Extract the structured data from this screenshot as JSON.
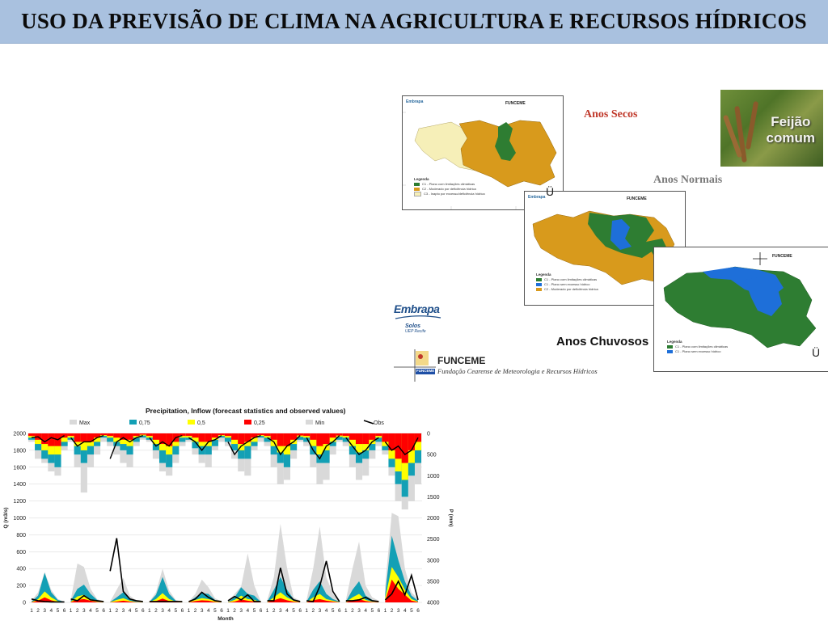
{
  "slide": {
    "title": "USO DA PREVISÃO DE CLIMA NA AGRICULTURA E RECURSOS HÍDRICOS"
  },
  "maps": {
    "secos": {
      "label": "Anos Secos",
      "legend_title": "Legenda",
      "legend_items": [
        {
          "text": "C1 - Plano com limitações climáticas",
          "color": "#2e7d32"
        },
        {
          "text": "C2 - Moderado por deficiência hídrica",
          "color": "#d89a1c"
        },
        {
          "text": "C3 - Inapto por excesso/deficiência hídrica",
          "color": "#f6efb8"
        }
      ],
      "funceme_tag": "FUNCEME",
      "embrapa_tag": "Embrapa"
    },
    "normais": {
      "label": "Anos Normais",
      "glyph": "Ü",
      "legend_title": "Legenda",
      "legend_items": [
        {
          "text": "C1 - Plano com limitações climáticas",
          "color": "#2e7d32"
        },
        {
          "text": "C1 - Plano sem excesso hídrico",
          "color": "#1e6fd9"
        },
        {
          "text": "C2 - Moderado por deficiência hídrica",
          "color": "#d89a1c"
        }
      ],
      "funceme_tag": "FUNCEME",
      "embrapa_tag": "Embrapa"
    },
    "chuvosos": {
      "label": "Anos Chuvosos",
      "glyph": "Ü",
      "legend_title": "Legenda",
      "legend_items": [
        {
          "text": "C1 - Plano com limitações climáticas",
          "color": "#2e7d32"
        },
        {
          "text": "C1 - Plano sem excesso hídrico",
          "color": "#1e6fd9"
        }
      ],
      "funceme_tag": "FUNCEME"
    }
  },
  "photo": {
    "caption_line1": "Feijão",
    "caption_line2": "comum"
  },
  "logos": {
    "embrapa": {
      "word_a": "Emb",
      "word_b": "rapa",
      "sub1": "Solos",
      "sub2": "UEP Recife"
    },
    "funceme": {
      "name": "FUNCEME",
      "full": "Fundação Cearense de Meteorologia e Recursos Hídricos",
      "badge": "FUNCEME"
    }
  },
  "colors": {
    "title_bg": "#a9c1df",
    "dry_orange": "#d89a1c",
    "green": "#2e7d32",
    "blue": "#1e6fd9",
    "pale": "#f6efb8",
    "max_gray": "#d9d9d9",
    "q75": "#13a0b5",
    "q50": "#ffff00",
    "q25": "#ff0000"
  },
  "chart_data": {
    "type": "area",
    "title": "Precipitation, Inflow (forecast statistics and observed values)",
    "xlabel": "Month",
    "ylabel": "Q (m3/s)",
    "y2label": "P (mm)",
    "ylim": [
      0,
      2000
    ],
    "y_ticks": [
      "0",
      "200",
      "400",
      "600",
      "800",
      "1000",
      "1200",
      "1400",
      "1600",
      "1800",
      "2000"
    ],
    "y2lim": [
      0,
      4000
    ],
    "y2_ticks": [
      "0",
      "500",
      "1000",
      "1500",
      "2000",
      "2500",
      "3000",
      "3500",
      "4000"
    ],
    "y2_inverted": true,
    "x_ticks": [
      "1",
      "2",
      "3",
      "4",
      "5",
      "6"
    ],
    "legend": [
      "Max",
      "0,75",
      "0,5",
      "0,25",
      "Min",
      "Obs"
    ],
    "legend_position": "top",
    "grid": true,
    "panels": [
      {
        "inflow_max": [
          20,
          120,
          360,
          150,
          40,
          10
        ],
        "inflow_q75": [
          10,
          80,
          350,
          120,
          30,
          5
        ],
        "inflow_q50": [
          5,
          40,
          130,
          60,
          15,
          3
        ],
        "inflow_q25": [
          2,
          20,
          60,
          25,
          6,
          1
        ],
        "obs": [
          40,
          20,
          10,
          5,
          5,
          5
        ],
        "precip_max": [
          200,
          600,
          700,
          900,
          1000,
          400
        ],
        "precip_q75": [
          150,
          400,
          600,
          700,
          800,
          300
        ],
        "precip_q50": [
          100,
          250,
          400,
          500,
          500,
          200
        ],
        "precip_q25": [
          60,
          150,
          250,
          300,
          300,
          100
        ],
        "obs_p": [
          100,
          80,
          200,
          100,
          150,
          50
        ]
      },
      {
        "inflow_max": [
          30,
          460,
          420,
          160,
          40,
          10
        ],
        "inflow_q75": [
          20,
          160,
          210,
          100,
          30,
          5
        ],
        "inflow_q50": [
          10,
          70,
          90,
          40,
          10,
          2
        ],
        "inflow_q25": [
          5,
          30,
          40,
          20,
          5,
          1
        ],
        "obs": [
          40,
          20,
          80,
          30,
          20,
          10
        ],
        "precip_max": [
          200,
          800,
          1400,
          800,
          500,
          200
        ],
        "precip_q75": [
          150,
          500,
          700,
          500,
          300,
          100
        ],
        "precip_q50": [
          100,
          300,
          400,
          300,
          200,
          60
        ],
        "precip_q25": [
          60,
          200,
          200,
          200,
          100,
          40
        ],
        "obs_p": [
          100,
          300,
          200,
          200,
          100,
          50
        ]
      },
      {
        "inflow_max": [
          10,
          150,
          290,
          80,
          20,
          10
        ],
        "inflow_q75": [
          5,
          60,
          120,
          50,
          10,
          5
        ],
        "inflow_q50": [
          3,
          30,
          50,
          20,
          5,
          2
        ],
        "inflow_q25": [
          1,
          10,
          20,
          10,
          2,
          1
        ],
        "obs": [
          370,
          760,
          130,
          40,
          20,
          10
        ],
        "precip_max": [
          300,
          500,
          700,
          800,
          300,
          150
        ],
        "precip_q75": [
          200,
          300,
          400,
          500,
          200,
          100
        ],
        "precip_q50": [
          100,
          200,
          250,
          300,
          100,
          50
        ],
        "precip_q25": [
          60,
          100,
          150,
          150,
          60,
          30
        ],
        "obs_p": [
          600,
          200,
          100,
          200,
          100,
          50
        ]
      },
      {
        "inflow_max": [
          10,
          120,
          400,
          140,
          30,
          10
        ],
        "inflow_q75": [
          5,
          90,
          300,
          100,
          20,
          5
        ],
        "inflow_q50": [
          3,
          40,
          110,
          40,
          10,
          2
        ],
        "inflow_q25": [
          1,
          15,
          45,
          15,
          5,
          1
        ],
        "obs": [
          10,
          10,
          10,
          10,
          10,
          10
        ],
        "precip_max": [
          200,
          600,
          900,
          1000,
          700,
          300
        ],
        "precip_q75": [
          150,
          400,
          700,
          800,
          500,
          200
        ],
        "precip_q50": [
          100,
          250,
          400,
          500,
          300,
          100
        ],
        "precip_q25": [
          60,
          150,
          250,
          300,
          200,
          60
        ],
        "obs_p": [
          100,
          300,
          200,
          300,
          100,
          50
        ]
      },
      {
        "inflow_max": [
          10,
          100,
          270,
          180,
          50,
          10
        ],
        "inflow_q75": [
          5,
          60,
          110,
          100,
          30,
          5
        ],
        "inflow_q50": [
          3,
          30,
          50,
          40,
          15,
          2
        ],
        "inflow_q25": [
          1,
          15,
          25,
          20,
          5,
          1
        ],
        "obs": [
          10,
          40,
          120,
          60,
          20,
          10
        ],
        "precip_max": [
          200,
          500,
          700,
          800,
          400,
          200
        ],
        "precip_q75": [
          150,
          350,
          500,
          500,
          300,
          100
        ],
        "precip_q50": [
          100,
          200,
          300,
          300,
          150,
          60
        ],
        "precip_q25": [
          60,
          100,
          200,
          200,
          100,
          40
        ],
        "obs_p": [
          100,
          200,
          400,
          200,
          150,
          50
        ]
      },
      {
        "inflow_max": [
          10,
          100,
          190,
          580,
          200,
          10
        ],
        "inflow_q75": [
          5,
          60,
          180,
          100,
          80,
          5
        ],
        "inflow_q50": [
          3,
          30,
          80,
          40,
          30,
          2
        ],
        "inflow_q25": [
          1,
          10,
          35,
          20,
          10,
          1
        ],
        "obs": [
          20,
          70,
          30,
          90,
          10,
          10
        ],
        "precip_max": [
          300,
          600,
          900,
          1000,
          400,
          200
        ],
        "precip_q75": [
          200,
          400,
          600,
          600,
          300,
          100
        ],
        "precip_q50": [
          100,
          250,
          400,
          300,
          200,
          60
        ],
        "precip_q25": [
          60,
          150,
          250,
          200,
          100,
          40
        ],
        "obs_p": [
          200,
          500,
          300,
          200,
          100,
          50
        ]
      },
      {
        "inflow_max": [
          30,
          300,
          930,
          410,
          60,
          20
        ],
        "inflow_q75": [
          10,
          150,
          300,
          150,
          40,
          10
        ],
        "inflow_q50": [
          5,
          60,
          120,
          60,
          20,
          5
        ],
        "inflow_q25": [
          2,
          25,
          50,
          25,
          8,
          2
        ],
        "obs": [
          20,
          20,
          410,
          100,
          30,
          10
        ],
        "precip_max": [
          300,
          800,
          1200,
          1100,
          600,
          200
        ],
        "precip_q75": [
          200,
          500,
          700,
          800,
          400,
          150
        ],
        "precip_q50": [
          100,
          300,
          450,
          500,
          250,
          80
        ],
        "precip_q25": [
          60,
          150,
          300,
          300,
          150,
          50
        ],
        "obs_p": [
          100,
          200,
          500,
          300,
          200,
          50
        ]
      },
      {
        "inflow_max": [
          30,
          400,
          900,
          300,
          100,
          20
        ],
        "inflow_q75": [
          10,
          150,
          250,
          100,
          40,
          10
        ],
        "inflow_q50": [
          5,
          60,
          100,
          40,
          20,
          5
        ],
        "inflow_q25": [
          2,
          25,
          40,
          20,
          10,
          2
        ],
        "obs": [
          20,
          10,
          190,
          490,
          130,
          10
        ],
        "precip_max": [
          300,
          800,
          1200,
          1100,
          500,
          200
        ],
        "precip_q75": [
          200,
          500,
          700,
          700,
          300,
          150
        ],
        "precip_q50": [
          100,
          300,
          500,
          400,
          200,
          80
        ],
        "precip_q25": [
          60,
          150,
          300,
          250,
          100,
          50
        ],
        "obs_p": [
          100,
          400,
          600,
          300,
          200,
          50
        ]
      },
      {
        "inflow_max": [
          30,
          400,
          720,
          200,
          60,
          20
        ],
        "inflow_q75": [
          10,
          150,
          250,
          80,
          30,
          10
        ],
        "inflow_q50": [
          5,
          60,
          100,
          30,
          10,
          5
        ],
        "inflow_q25": [
          2,
          25,
          40,
          15,
          5,
          2
        ],
        "obs": [
          20,
          20,
          30,
          60,
          20,
          10
        ],
        "precip_max": [
          300,
          800,
          1100,
          1000,
          600,
          300
        ],
        "precip_q75": [
          200,
          500,
          700,
          600,
          400,
          200
        ],
        "precip_q50": [
          100,
          300,
          450,
          400,
          250,
          100
        ],
        "precip_q25": [
          60,
          150,
          250,
          250,
          150,
          60
        ],
        "obs_p": [
          100,
          300,
          500,
          400,
          200,
          100
        ]
      },
      {
        "inflow_max": [
          200,
          1060,
          1020,
          400,
          120,
          40
        ],
        "inflow_q75": [
          100,
          790,
          500,
          250,
          80,
          20
        ],
        "inflow_q50": [
          50,
          420,
          300,
          150,
          40,
          10
        ],
        "inflow_q25": [
          20,
          270,
          160,
          90,
          20,
          5
        ],
        "obs": [
          30,
          100,
          250,
          90,
          320,
          30
        ],
        "precip_max": [
          500,
          1000,
          1600,
          1800,
          1600,
          1200
        ],
        "precip_q75": [
          400,
          800,
          1200,
          1500,
          1000,
          700
        ],
        "precip_q50": [
          300,
          600,
          900,
          1100,
          700,
          400
        ],
        "precip_q25": [
          200,
          400,
          600,
          700,
          400,
          200
        ],
        "obs_p": [
          200,
          400,
          300,
          500,
          400,
          100
        ]
      }
    ]
  }
}
